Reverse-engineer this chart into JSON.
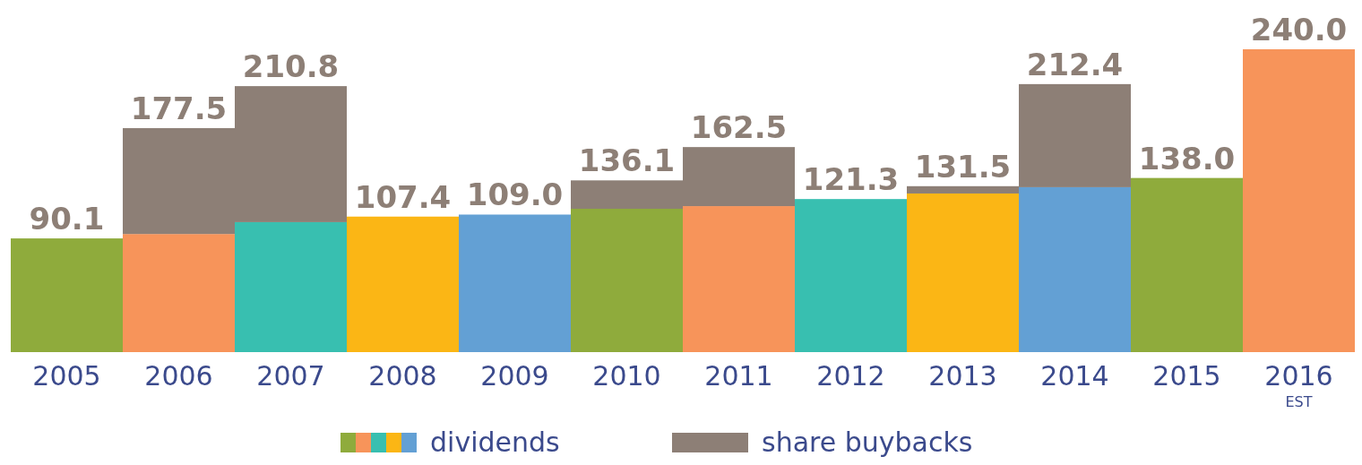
{
  "chart_data": {
    "type": "bar",
    "stacked": true,
    "categories": [
      "2005",
      "2006",
      "2007",
      "2008",
      "2009",
      "2010",
      "2011",
      "2012",
      "2013",
      "2014",
      "2015",
      "2016\nEST"
    ],
    "series": [
      {
        "name": "dividends",
        "colors": [
          "#8fab3c",
          "#f7945a",
          "#38bfb0",
          "#fbb615",
          "#63a0d4",
          "#8fab3c",
          "#f7945a",
          "#38bfb0",
          "#fbb615",
          "#63a0d4",
          "#8fab3c",
          "#f7945a"
        ],
        "values": [
          90.1,
          93.6,
          103,
          107.4,
          109.0,
          113.6,
          115.7,
          121.3,
          125.7,
          130.7,
          138.0,
          240.0
        ],
        "value_labels": [
          "90.1",
          null,
          null,
          "107.4",
          "109.0",
          null,
          null,
          "121.3",
          null,
          null,
          "138.0",
          "240.0"
        ]
      },
      {
        "name": "share buybacks",
        "color": "#8d7f76",
        "values": [
          null,
          83.9,
          107.8,
          null,
          null,
          22.5,
          46.8,
          null,
          5.8,
          81.7,
          null,
          null
        ]
      }
    ],
    "totals": [
      null,
      "177.5",
      "210.8",
      null,
      null,
      "136.1",
      "162.5",
      null,
      "131.5",
      "212.4",
      null,
      null
    ],
    "legend": "bottom"
  }
}
